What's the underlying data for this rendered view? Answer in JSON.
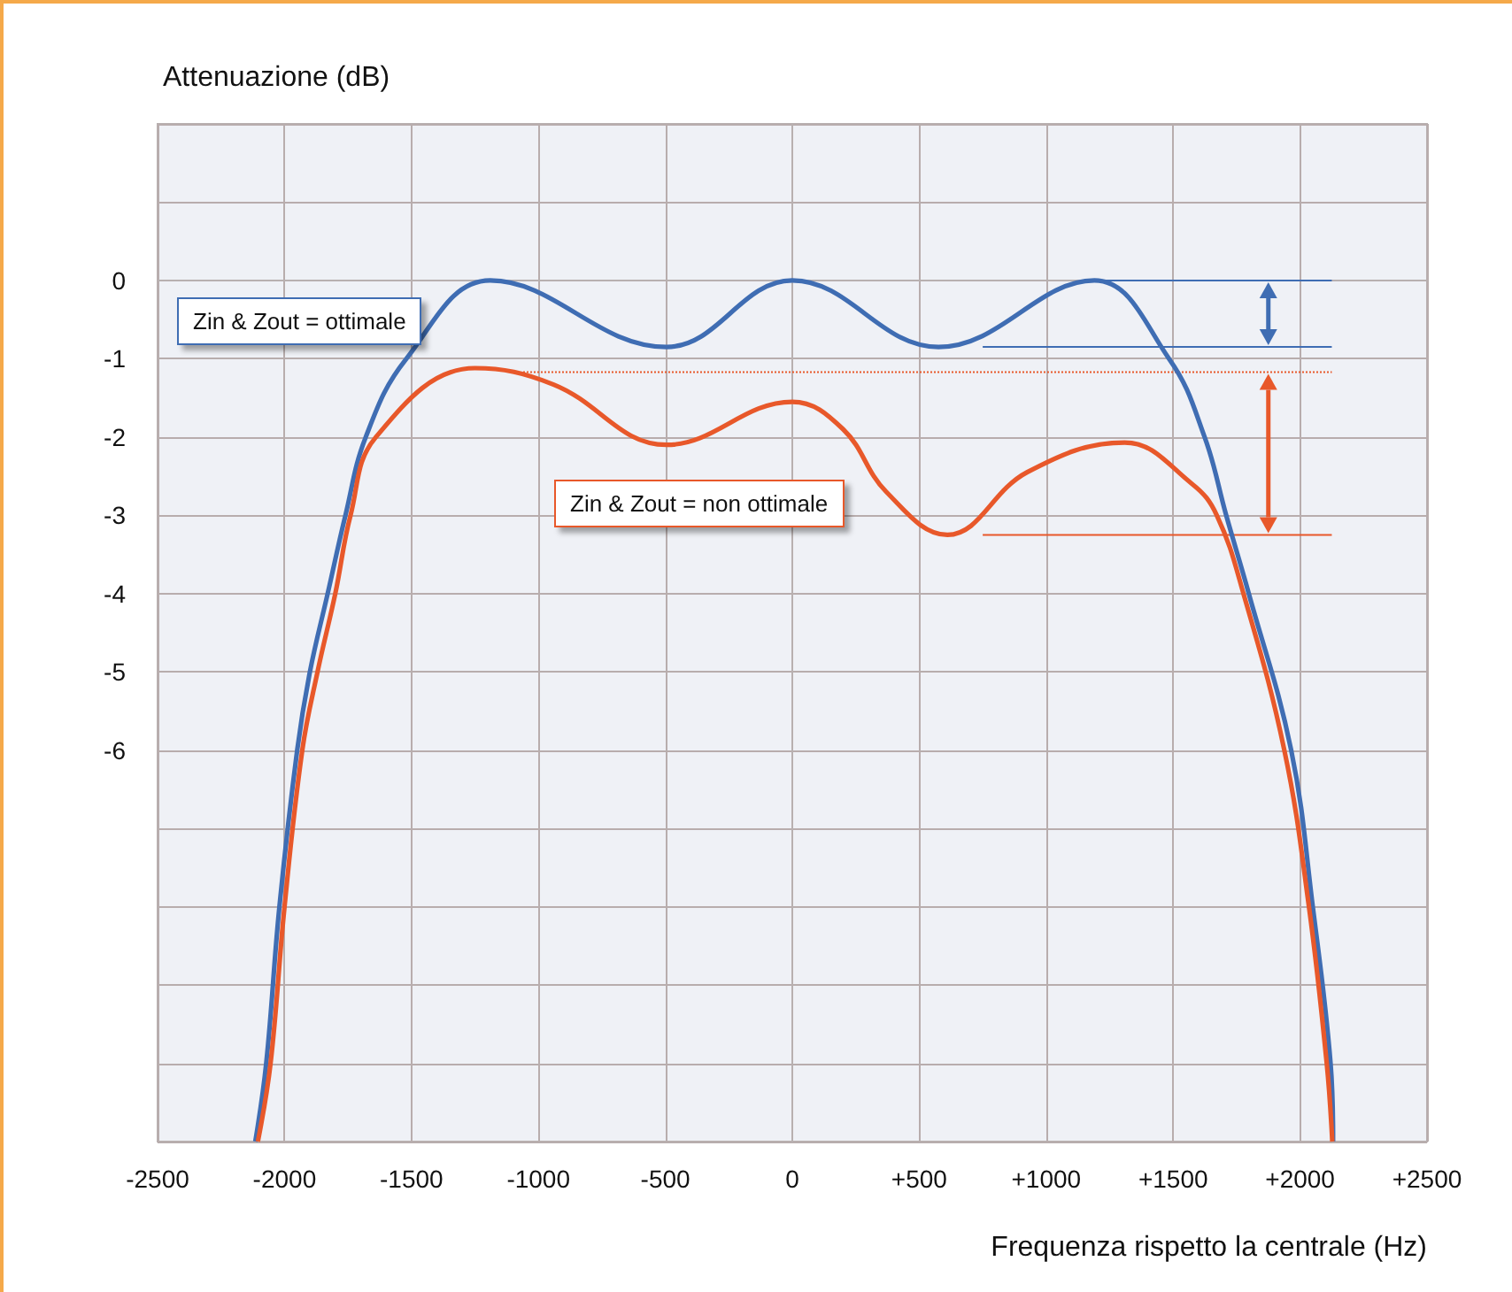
{
  "chart_data": {
    "type": "line",
    "ylabel": "Attenuazione (dB)",
    "xlabel": "Frequenza rispetto la centrale (Hz)",
    "xlim": [
      -2500,
      2500
    ],
    "xticks": [
      -2500,
      -2000,
      -1500,
      -1000,
      -500,
      0,
      {
        "value": 500,
        "label": "+500"
      },
      {
        "value": 1000,
        "label": "+1000"
      },
      {
        "value": 1500,
        "label": "+1500"
      },
      {
        "value": 2000,
        "label": "+2000"
      },
      {
        "value": 2500,
        "label": "+2500"
      }
    ],
    "ylim": [
      -11,
      2
    ],
    "yticks": [
      {
        "value": 2,
        "label": null
      },
      {
        "value": 1,
        "label": null
      },
      0,
      -1,
      -2,
      -3,
      -4,
      -5,
      -6,
      {
        "value": -7,
        "label": null
      },
      {
        "value": -8,
        "label": null
      },
      {
        "value": -9,
        "label": null
      },
      {
        "value": -10,
        "label": null
      },
      {
        "value": -11,
        "label": null
      }
    ],
    "grid": true,
    "marker": "none",
    "series": [
      {
        "color": "#3f6db3",
        "x": [
          -2115,
          -2072,
          -2020,
          -1950,
          -1900,
          -1830,
          -1760,
          -1680,
          -1520,
          -1190,
          -495,
          0,
          576,
          1190,
          1484,
          1624,
          1709,
          1798,
          1965,
          2050,
          2120,
          2130
        ],
        "values": [
          -11,
          -10,
          -8,
          -6,
          -5,
          -4,
          -3,
          -2,
          -1,
          0,
          -0.85,
          0,
          -0.85,
          0,
          -1,
          -2,
          -3,
          -4,
          -6,
          -8,
          -10,
          -11
        ]
      },
      {
        "color": "#e8582a",
        "x": [
          -2105,
          -2055,
          -2000,
          -1930,
          -1870,
          -1800,
          -1740,
          -1640,
          -1250,
          -940,
          -495,
          0,
          200,
          370,
          611,
          925,
          1309,
          1575,
          1672,
          1777,
          1938,
          2035,
          2105,
          2127
        ],
        "values": [
          -11,
          -10,
          -8,
          -6,
          -5,
          -4,
          -3,
          -2,
          -1.12,
          -1.33,
          -2.1,
          -1.55,
          -1.9,
          -2.7,
          -3.25,
          -2.45,
          -2.07,
          -2.6,
          -3,
          -4,
          -6,
          -8,
          -10,
          -11
        ]
      },
      {
        "color": "#3f6db3",
        "line_style": "solid",
        "x": [
          1200,
          2125
        ],
        "values": [
          0,
          0
        ]
      },
      {
        "color": "#3f6db3",
        "line_style": "solid",
        "x": [
          750,
          2125
        ],
        "values": [
          -0.85,
          -0.85
        ]
      },
      {
        "color": "#e8582a",
        "line_style": "dotted",
        "x": [
          -1060,
          2125
        ],
        "values": [
          -1.17,
          -1.17
        ]
      },
      {
        "color": "#e8582a",
        "line_style": "solid",
        "x": [
          750,
          2125
        ],
        "values": [
          -3.25,
          -3.25
        ]
      }
    ],
    "annotations": [
      "Zin & Zout = ottimale",
      "Zin & Zout = non ottimale"
    ]
  }
}
